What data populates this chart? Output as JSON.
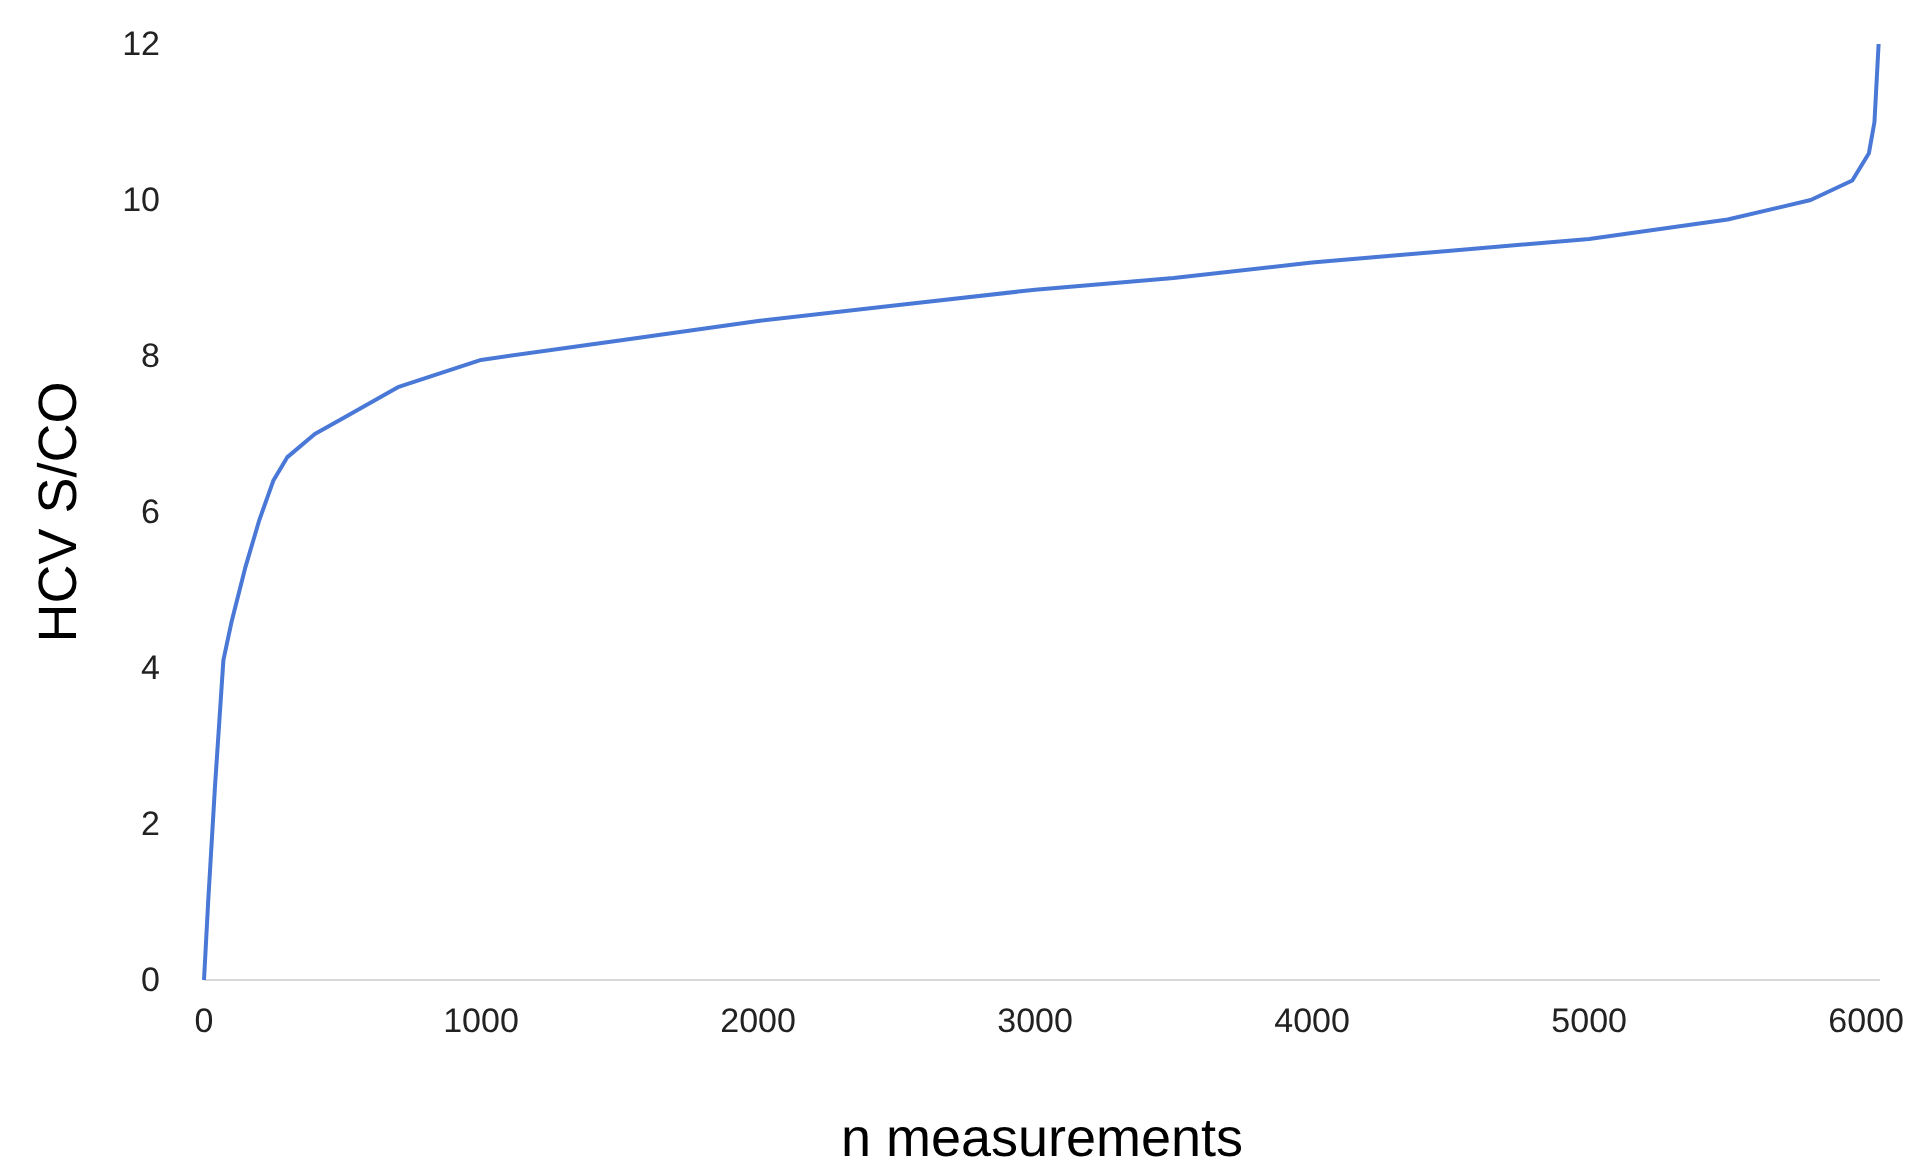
{
  "chart_data": {
    "type": "line",
    "xlabel": "n measurements",
    "ylabel": "HCV S/CO",
    "x": [
      0,
      15,
      40,
      70,
      100,
      150,
      200,
      250,
      300,
      400,
      500,
      700,
      1000,
      1500,
      2000,
      2500,
      3000,
      3500,
      4000,
      4500,
      5000,
      5500,
      5800,
      5950,
      6010,
      6030,
      6045
    ],
    "series": [
      {
        "color": "#4a78d6",
        "values": [
          0,
          1,
          2.5,
          4.1,
          4.6,
          5.3,
          5.9,
          6.4,
          6.7,
          7.0,
          7.2,
          7.6,
          7.95,
          8.2,
          8.45,
          8.65,
          8.85,
          9.0,
          9.2,
          9.35,
          9.5,
          9.75,
          10.0,
          10.25,
          10.6,
          11.0,
          12
        ]
      }
    ],
    "xlim": [
      0,
      6050
    ],
    "xticks": [
      0,
      1000,
      2000,
      3000,
      4000,
      5000,
      6000
    ],
    "ylim": [
      0,
      12
    ],
    "yticks": [
      0,
      2,
      4,
      6,
      8,
      10,
      12
    ],
    "grid": false,
    "marker": "none",
    "line_style": "solid"
  }
}
